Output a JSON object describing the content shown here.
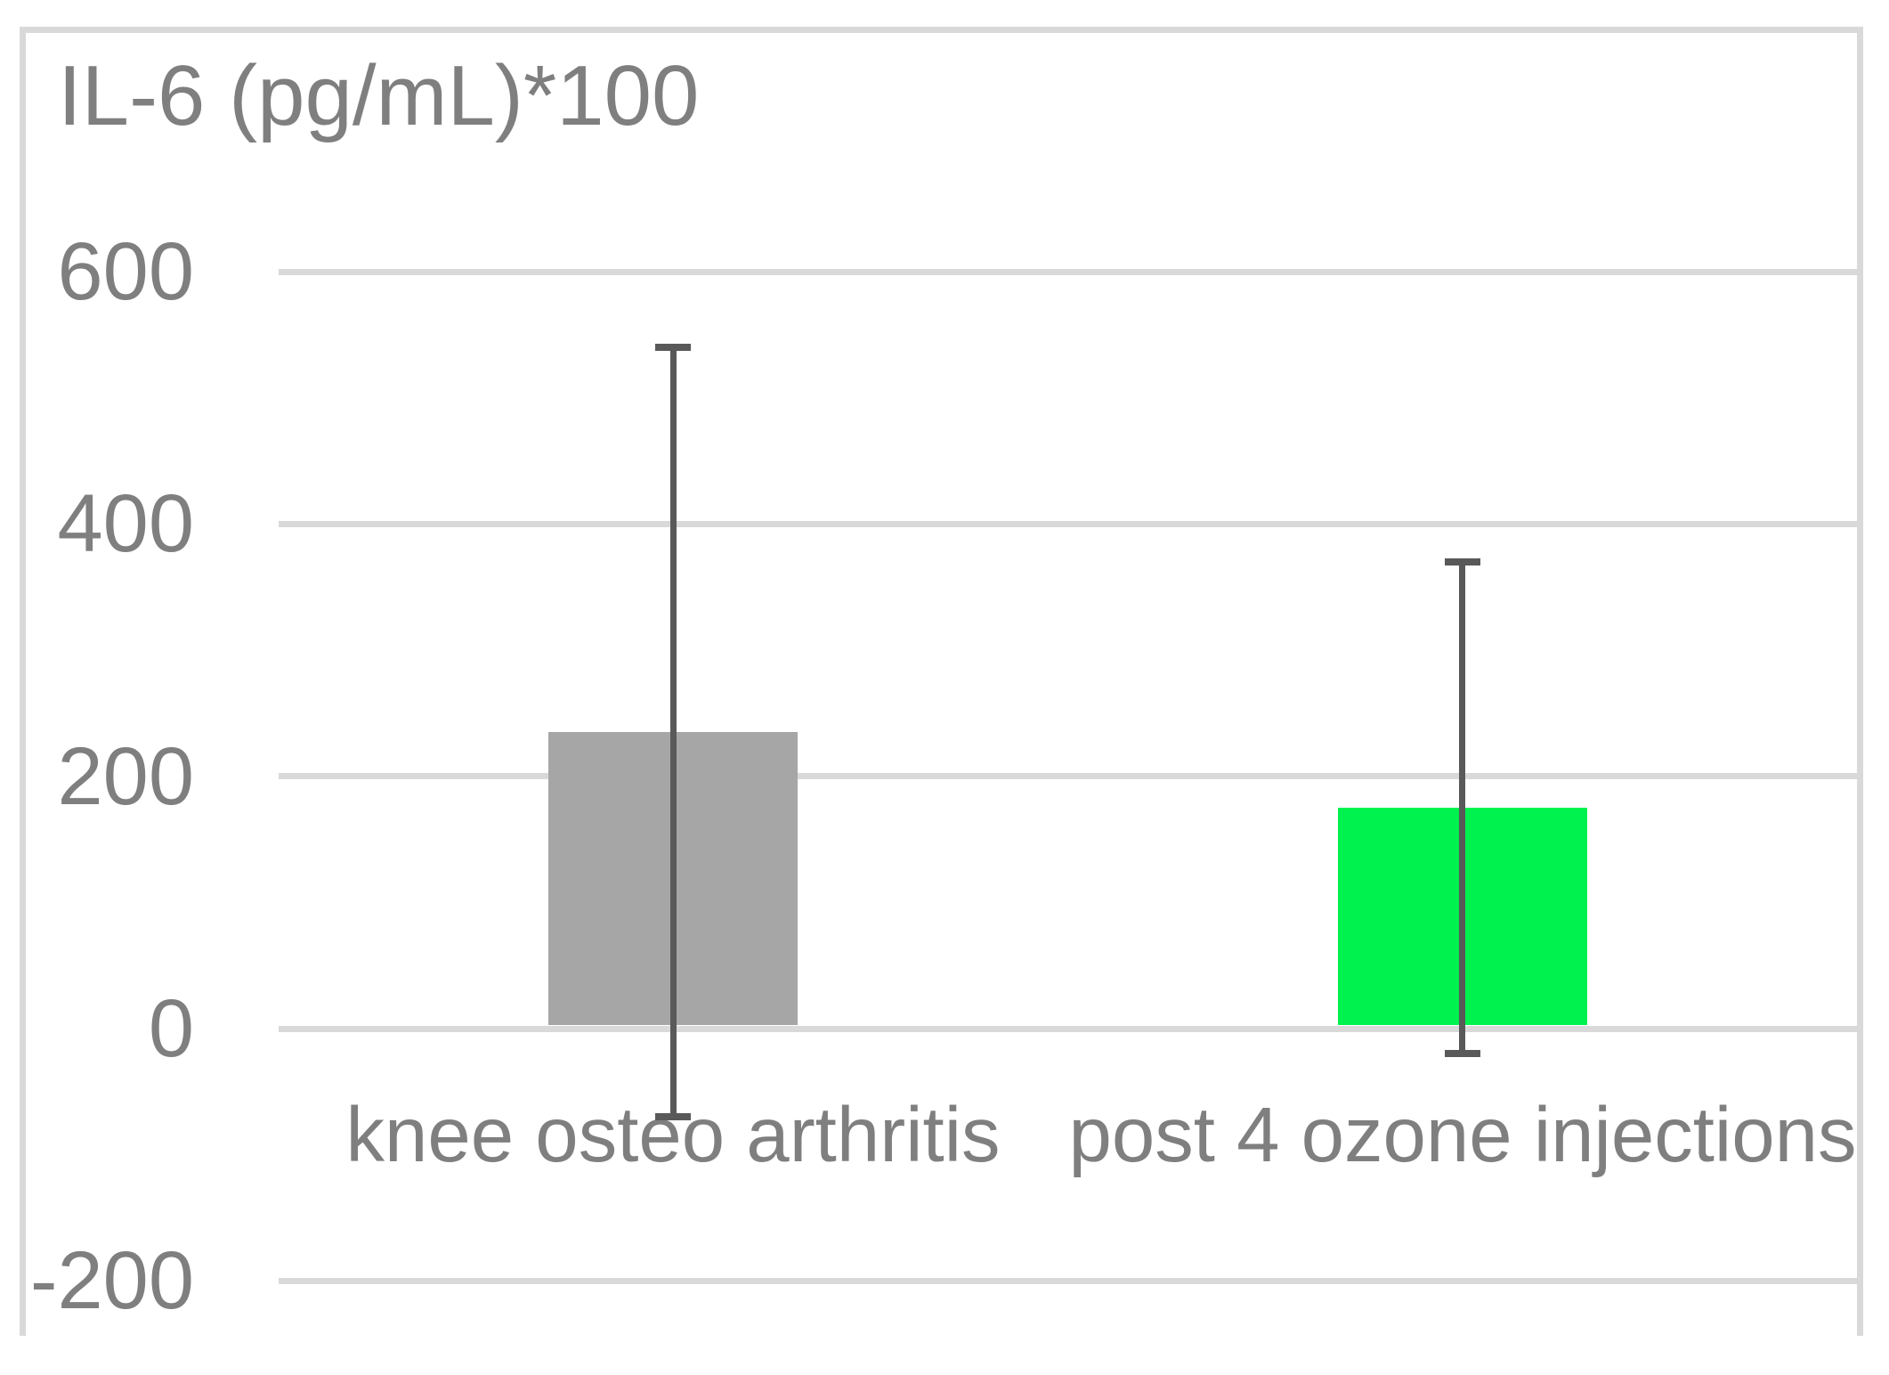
{
  "title": "IL-6 (pg/mL)*100",
  "chart_data": {
    "type": "bar",
    "title": "IL-6 (pg/mL)*100",
    "categories": [
      "knee osteo arthritis",
      "post 4 ozone injections"
    ],
    "series": [
      {
        "name": "IL-6 (pg/mL)*100",
        "values": [
          235,
          175
        ],
        "error_bars_sd": [
          305,
          195
        ],
        "error_bar_ranges": [
          {
            "upper": 540,
            "lower": -70
          },
          {
            "upper": 370,
            "lower": -20
          }
        ],
        "bar_colors": [
          "#a6a6a6",
          "#00f24e"
        ]
      }
    ],
    "yticks": [
      600,
      400,
      200,
      0,
      -200
    ],
    "ylim": [
      -245,
      790
    ],
    "xlabel": "",
    "ylabel": "",
    "grid": true,
    "legend": false,
    "colors": {
      "gray_bar": "#a6a6a6",
      "green_bar": "#00f24e",
      "error_bar": "#595959",
      "gridline": "#d9d9d9",
      "frame_border": "#d9d9d9",
      "text": "#7f7f7f"
    }
  }
}
